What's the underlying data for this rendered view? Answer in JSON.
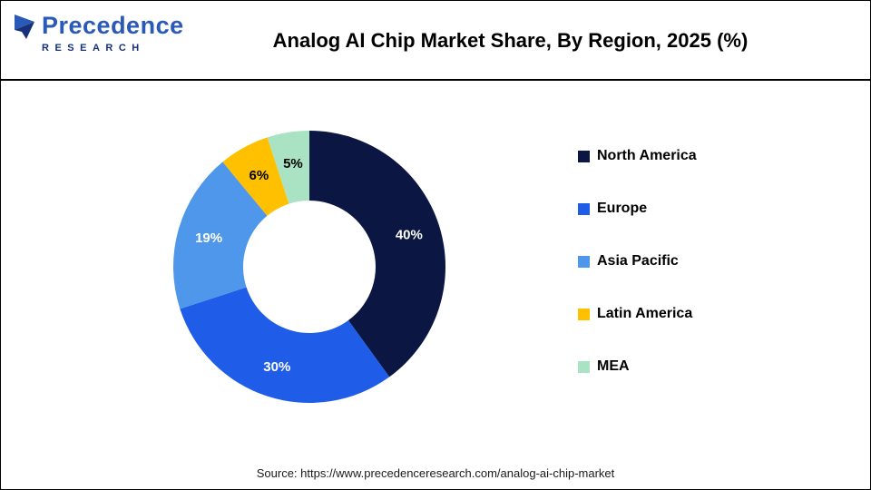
{
  "header": {
    "logo": {
      "name": "Precedence",
      "subname": "RESEARCH"
    },
    "title": "Analog AI Chip Market Share, By Region, 2025 (%)"
  },
  "chart_data": {
    "type": "pie",
    "subtype": "donut",
    "title": "Analog AI Chip Market Share, By Region, 2025 (%)",
    "categories": [
      "North America",
      "Europe",
      "Asia Pacific",
      "Latin America",
      "MEA"
    ],
    "values": [
      40,
      30,
      19,
      6,
      5
    ],
    "unit": "%",
    "colors": [
      "#0b1742",
      "#1f5ce8",
      "#4f97ea",
      "#ffc000",
      "#a9e3c3"
    ],
    "label_colors": [
      "#ffffff",
      "#ffffff",
      "#ffffff",
      "#000000",
      "#000000"
    ],
    "legend_position": "right",
    "start_angle": 0,
    "direction": "clockwise"
  },
  "footer": {
    "source": "Source: https://www.precedenceresearch.com/analog-ai-chip-market"
  }
}
